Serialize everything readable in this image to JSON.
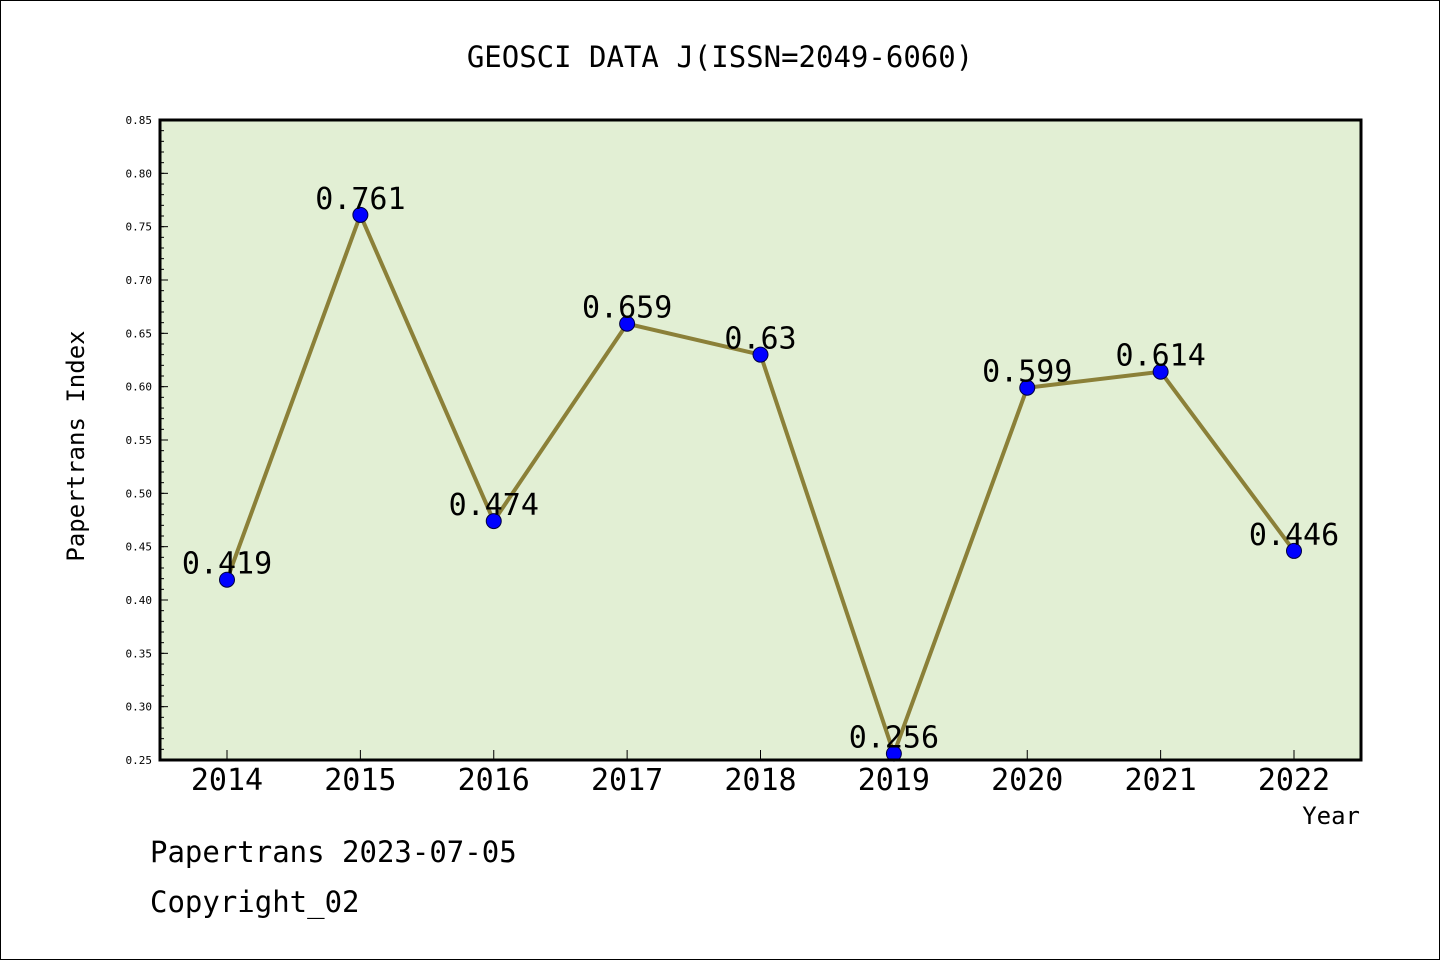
{
  "chart_data": {
    "type": "line",
    "title": "GEOSCI DATA J(ISSN=2049-6060)",
    "xlabel": "Year",
    "ylabel": "Papertrans Index",
    "categories": [
      "2014",
      "2015",
      "2016",
      "2017",
      "2018",
      "2019",
      "2020",
      "2021",
      "2022"
    ],
    "series": [
      {
        "values": [
          0.419,
          0.761,
          0.474,
          0.659,
          0.63,
          0.256,
          0.599,
          0.614,
          0.446
        ],
        "labels": [
          "0.419",
          "0.761",
          "0.474",
          "0.659",
          "0.63",
          "0.256",
          "0.599",
          "0.614",
          "0.446"
        ]
      }
    ],
    "ylim": [
      0.25,
      0.85
    ],
    "yticks": [
      "0.25",
      "0.30",
      "0.35",
      "0.40",
      "0.45",
      "0.50",
      "0.55",
      "0.60",
      "0.65",
      "0.70",
      "0.75",
      "0.80",
      "0.85"
    ],
    "grid": false,
    "colors": {
      "background": "#e2efd4",
      "line": "#8b8038",
      "marker": "#0000ff"
    }
  },
  "footer": {
    "line1": "Papertrans 2023-07-05",
    "line2": "Copyright_02"
  }
}
